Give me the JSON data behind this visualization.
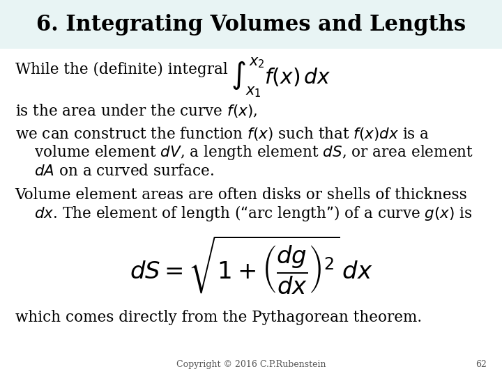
{
  "title": "6. Integrating Volumes and Lengths",
  "title_bg_color": "#e8f4f4",
  "slide_bg_color": "#ffffff",
  "title_fontsize": 22,
  "title_fontstyle": "bold",
  "body_fontsize": 15.5,
  "footer_text": "Copyright © 2016 C.P.Rubenstein",
  "footer_page": "62",
  "line1": "While the (definite) integral",
  "integral_formula": "$\\int_{x_1}^{x_2} f(x)\\,dx$",
  "line2": "is the area under the curve $f(x)$,",
  "line3a": "we can construct the function $f(x)$ such that $f(x)dx$ is a",
  "line3b": "    volume element $dV$, a length element $dS$, or area element",
  "line3c": "    $dA$ on a curved surface.",
  "line4a": "Volume element areas are often disks or shells of thickness",
  "line4b": "    $dx$. The element of length (“arc length”) of a curve $g(x)$ is",
  "arc_formula": "$dS = \\sqrt{1 + \\left(\\dfrac{dg}{dx}\\right)^2}\\,dx$",
  "line5": "which comes directly from the Pythagorean theorem."
}
